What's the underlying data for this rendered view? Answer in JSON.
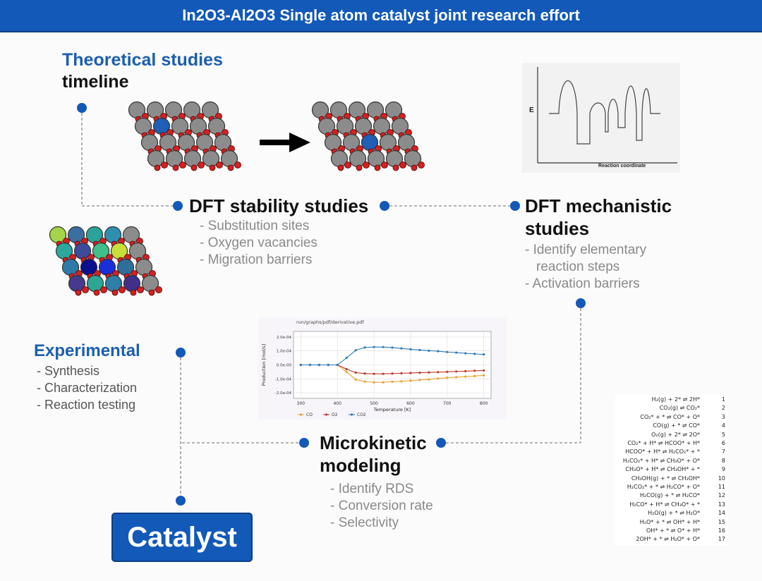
{
  "banner": {
    "title": "In2O3-Al2O3 Single atom catalyst joint research effort"
  },
  "theory": {
    "title_blue": "Theoretical studies",
    "title_black": "timeline"
  },
  "experimental": {
    "title": "Experimental",
    "items": [
      "- Synthesis",
      "- Characterization",
      "- Reaction testing"
    ]
  },
  "dft_stability": {
    "title": "DFT stability studies",
    "items": [
      "- Substitution sites",
      "- Oxygen vacancies",
      "- Migration barriers"
    ]
  },
  "dft_mechanistic": {
    "title_line1": "DFT mechanistic",
    "title_line2": "studies",
    "items": [
      "- Identify elementary",
      "reaction steps",
      "- Activation barriers"
    ]
  },
  "microkinetic": {
    "title_line1": "Microkinetic",
    "title_line2": "modeling",
    "items": [
      "- Identify RDS",
      "- Conversion rate",
      "- Selectivity"
    ]
  },
  "catalyst": {
    "label": "Catalyst"
  },
  "energy_diagram": {
    "ylabel": "E",
    "xlabel": "Reaction coordinate"
  },
  "colors": {
    "accent": "#1259b8",
    "node": "#1259b8",
    "oxygen": "#d42020",
    "metal": "#8c8c8c"
  },
  "chart_data": {
    "type": "line",
    "title": "run/graphs/pdf/derivative.pdf",
    "xlabel": "Temperature [K]",
    "ylabel": "Production [mol/s]",
    "xlim": [
      280,
      820
    ],
    "ylim": [
      -0.00024,
      0.00024
    ],
    "x_ticks": [
      "300",
      "400",
      "500",
      "600",
      "700",
      "800"
    ],
    "y_ticks": [
      "2.0e-04",
      "1.0e-04",
      "0.0e-00",
      "-1.0e-04",
      "-2.0e-04"
    ],
    "grid": true,
    "legend": "bottom",
    "x": [
      300,
      325,
      350,
      375,
      400,
      425,
      450,
      475,
      500,
      525,
      550,
      575,
      600,
      625,
      650,
      675,
      700,
      725,
      750,
      775,
      800
    ],
    "series": [
      {
        "name": "CO",
        "color": "#e8a030",
        "values": [
          0,
          0,
          0,
          0,
          0,
          -5e-05,
          -0.000105,
          -0.00012,
          -0.000125,
          -0.000125,
          -0.00012,
          -0.000118,
          -0.000113,
          -0.000108,
          -0.000104,
          -9.8e-05,
          -9.2e-05,
          -8.8e-05,
          -8.4e-05,
          -8e-05,
          -7.5e-05
        ]
      },
      {
        "name": "O2",
        "color": "#c0392b",
        "values": [
          0,
          0,
          0,
          0,
          0,
          -3e-05,
          -5.5e-05,
          -6.2e-05,
          -6.4e-05,
          -6.4e-05,
          -6.2e-05,
          -6e-05,
          -5.8e-05,
          -5.6e-05,
          -5.4e-05,
          -5.2e-05,
          -5e-05,
          -4.7e-05,
          -4.5e-05,
          -4.2e-05,
          -4e-05
        ]
      },
      {
        "name": "CO2",
        "color": "#2e7bb4",
        "values": [
          0,
          0,
          0,
          0,
          0,
          5e-05,
          0.000105,
          0.000125,
          0.000128,
          0.000128,
          0.000124,
          0.000118,
          0.000112,
          0.000107,
          0.000102,
          9.8e-05,
          9.2e-05,
          8.8e-05,
          8.3e-05,
          7.9e-05,
          7.5e-05
        ]
      }
    ]
  },
  "reactions": [
    {
      "eq": "H₂(g) + 2* ⇌ 2H*",
      "n": "1"
    },
    {
      "eq": "CO₂(g) ⇌ CO₂*",
      "n": "2"
    },
    {
      "eq": "CO₂* + * ⇌ CO* + O*",
      "n": "3"
    },
    {
      "eq": "CO(g) + * ⇌ CO*",
      "n": "4"
    },
    {
      "eq": "O₂(g) + 2* ⇌ 2O*",
      "n": "5"
    },
    {
      "eq": "CO₂* + H* ⇌ HCOO* + H*",
      "n": "6"
    },
    {
      "eq": "HCOO* + H* ⇌ H₂CO₂* + *",
      "n": "7"
    },
    {
      "eq": "H₂CO₂* + H* ⇌ CH₃O* + O*",
      "n": "8"
    },
    {
      "eq": "CH₃O* + H* ⇌ CH₃OH* + *",
      "n": "9"
    },
    {
      "eq": "CH₃OH(g) + * ⇌ CH₃OH*",
      "n": "10"
    },
    {
      "eq": "H₂CO₂* + * ⇌ H₂CO* + O*",
      "n": "11"
    },
    {
      "eq": "H₂CO(g) + * ⇌ H₂CO*",
      "n": "12"
    },
    {
      "eq": "H₂CO* + H* ⇌ CH₃O* + *",
      "n": "13"
    },
    {
      "eq": "H₂O(g) + * ⇌ H₂O*",
      "n": "14"
    },
    {
      "eq": "H₂O* + * ⇌ OH* + H*",
      "n": "15"
    },
    {
      "eq": "OH* + * ⇌ O* + H*",
      "n": "16"
    },
    {
      "eq": "2OH* + * ⇌ H₂O* + O*",
      "n": "17"
    }
  ]
}
